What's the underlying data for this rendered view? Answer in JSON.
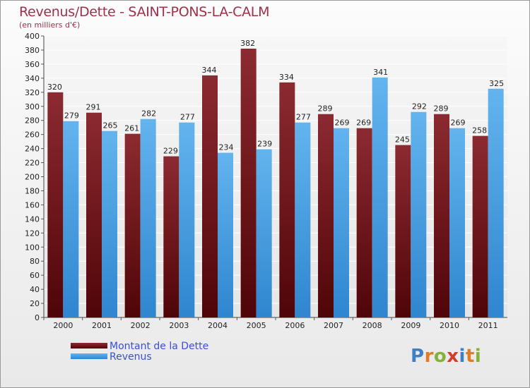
{
  "header": {
    "title": "Revenus/Dette - SAINT-PONS-LA-CALM",
    "subtitle": "(en milliers d'€)"
  },
  "colors": {
    "title": "#a0304a",
    "dette": "#6e1216",
    "revenus": "#4ea3e4",
    "legend_text": "#3a4ed8"
  },
  "chart_data": {
    "type": "bar",
    "title": "Revenus/Dette - SAINT-PONS-LA-CALM",
    "ylabel": "(en milliers d'€)",
    "xlabel": "",
    "categories": [
      "2000",
      "2001",
      "2002",
      "2003",
      "2004",
      "2005",
      "2006",
      "2007",
      "2008",
      "2009",
      "2010",
      "2011"
    ],
    "series": [
      {
        "name": "Montant de la Dette",
        "values": [
          320,
          291,
          261,
          229,
          344,
          382,
          334,
          289,
          269,
          245,
          289,
          258
        ]
      },
      {
        "name": "Revenus",
        "values": [
          279,
          265,
          282,
          277,
          234,
          239,
          277,
          269,
          341,
          292,
          269,
          325
        ]
      }
    ],
    "ylim": [
      0,
      400
    ],
    "ytick_step": 20,
    "grid": true,
    "legend_position": "bottom-left",
    "data_labels": true
  },
  "legend": {
    "items": [
      {
        "label": "Montant de la Dette",
        "color": "#6e1216"
      },
      {
        "label": "Revenus",
        "color": "#4ea3e4"
      }
    ]
  },
  "logo": {
    "letters": [
      {
        "ch": "P",
        "color": "#3f7fc4"
      },
      {
        "ch": "r",
        "color": "#e27b23"
      },
      {
        "ch": "o",
        "color": "#84b13a"
      },
      {
        "ch": "x",
        "color": "#d63c2c"
      },
      {
        "ch": "i",
        "color": "#3f7fc4"
      },
      {
        "ch": "t",
        "color": "#e27b23"
      },
      {
        "ch": "i",
        "color": "#84b13a"
      }
    ]
  }
}
